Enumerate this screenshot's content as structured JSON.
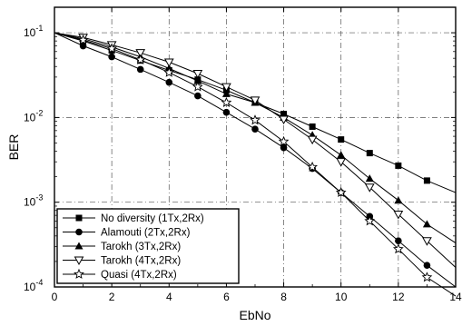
{
  "chart_data": {
    "type": "line",
    "title": "",
    "xlabel": "EbNo",
    "ylabel": "BER",
    "xlim": [
      0,
      14
    ],
    "ylim": [
      0.0001,
      0.2
    ],
    "yscale": "log",
    "grid": true,
    "grid_style": "dash-dot",
    "legend_position": "bottom-left",
    "x_ticks": [
      "0",
      "2",
      "4",
      "6",
      "8",
      "10",
      "12",
      "14"
    ],
    "y_ticks": [
      {
        "base": "10",
        "exp": "-1"
      },
      {
        "base": "10",
        "exp": "-2"
      },
      {
        "base": "10",
        "exp": "-3"
      },
      {
        "base": "10",
        "exp": "-4"
      }
    ],
    "x": [
      0,
      1,
      2,
      3,
      4,
      5,
      6,
      7,
      8,
      9,
      10,
      11,
      12,
      13,
      14
    ],
    "series": [
      {
        "name": "No diversity (1Tx,2Rx)",
        "marker": "square-filled",
        "values": [
          0.1,
          0.08,
          0.062,
          0.047,
          0.036,
          0.028,
          0.021,
          0.015,
          0.011,
          0.0078,
          0.0055,
          0.0038,
          0.0027,
          0.0018,
          0.0013
        ]
      },
      {
        "name": "Alamouti (2Tx,2Rx)",
        "marker": "circle-filled",
        "values": [
          0.1,
          0.07,
          0.052,
          0.037,
          0.026,
          0.018,
          0.0115,
          0.0073,
          0.0044,
          0.0025,
          0.0013,
          0.00068,
          0.00035,
          0.00018,
          0.0001
        ]
      },
      {
        "name": "Tarokh (3Tx,2Rx)",
        "marker": "triangle-up-filled",
        "values": [
          0.1,
          0.085,
          0.068,
          0.052,
          0.038,
          0.027,
          0.019,
          0.015,
          0.01,
          0.0062,
          0.0036,
          0.0019,
          0.00105,
          0.00055,
          0.00033
        ]
      },
      {
        "name": "Tarokh (4Tx,2Rx)",
        "marker": "triangle-down-open",
        "values": [
          0.1,
          0.088,
          0.072,
          0.058,
          0.045,
          0.033,
          0.023,
          0.016,
          0.0095,
          0.0055,
          0.003,
          0.0015,
          0.00072,
          0.00035,
          0.00017
        ]
      },
      {
        "name": "Quasi (4Tx,2Rx)",
        "marker": "star-open",
        "values": [
          0.1,
          0.082,
          0.065,
          0.048,
          0.034,
          0.023,
          0.015,
          0.0093,
          0.0052,
          0.0026,
          0.0013,
          0.0006,
          0.00028,
          0.00013,
          7.8e-05
        ]
      }
    ]
  }
}
